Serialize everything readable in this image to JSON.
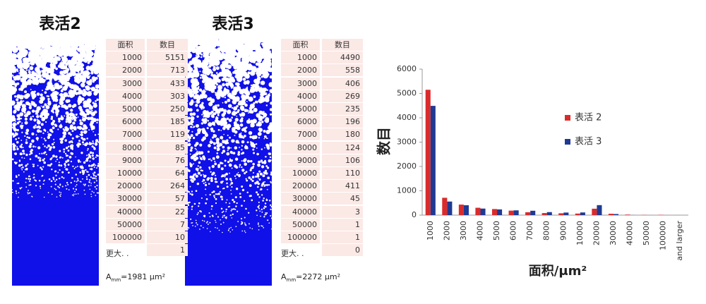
{
  "panels": [
    {
      "title": "表活2",
      "table": {
        "header": [
          "面积",
          "数目"
        ],
        "rows": [
          [
            "1000",
            "5151"
          ],
          [
            "2000",
            "713"
          ],
          [
            "3000",
            "433"
          ],
          [
            "4000",
            "303"
          ],
          [
            "5000",
            "250"
          ],
          [
            "6000",
            "185"
          ],
          [
            "7000",
            "119"
          ],
          [
            "8000",
            "85"
          ],
          [
            "9000",
            "76"
          ],
          [
            "10000",
            "64"
          ],
          [
            "20000",
            "264"
          ],
          [
            "30000",
            "57"
          ],
          [
            "40000",
            "22"
          ],
          [
            "50000",
            "7"
          ],
          [
            "100000",
            "10"
          ]
        ],
        "more_label": "更大. .",
        "more_value": "1"
      },
      "caption": {
        "symbol": "A",
        "subscript": "mm",
        "value": "=1981 μm²"
      }
    },
    {
      "title": "表活3",
      "table": {
        "header": [
          "面积",
          "数目"
        ],
        "rows": [
          [
            "1000",
            "4490"
          ],
          [
            "2000",
            "558"
          ],
          [
            "3000",
            "406"
          ],
          [
            "4000",
            "269"
          ],
          [
            "5000",
            "235"
          ],
          [
            "6000",
            "196"
          ],
          [
            "7000",
            "180"
          ],
          [
            "8000",
            "124"
          ],
          [
            "9000",
            "106"
          ],
          [
            "10000",
            "110"
          ],
          [
            "20000",
            "411"
          ],
          [
            "30000",
            "45"
          ],
          [
            "40000",
            "3"
          ],
          [
            "50000",
            "1"
          ],
          [
            "100000",
            "1"
          ]
        ],
        "more_label": "更大. .",
        "more_value": "0"
      },
      "caption": {
        "symbol": "A",
        "subscript": "mm",
        "value": "=2272 μm²"
      }
    }
  ],
  "chart_data": {
    "type": "bar",
    "xlabel": "面积/μm²",
    "ylabel": "数目",
    "categories": [
      "1000",
      "2000",
      "3000",
      "4000",
      "5000",
      "6000",
      "7000",
      "8000",
      "9000",
      "10000",
      "20000",
      "30000",
      "40000",
      "50000",
      "100000",
      "and larger"
    ],
    "series": [
      {
        "name": "表活 2",
        "color": "#d92b2b",
        "values": [
          5151,
          713,
          433,
          303,
          250,
          185,
          119,
          85,
          76,
          64,
          264,
          57,
          22,
          7,
          10,
          1
        ]
      },
      {
        "name": "表活 3",
        "color": "#1f3a93",
        "values": [
          4490,
          558,
          406,
          269,
          235,
          196,
          180,
          124,
          106,
          110,
          411,
          45,
          3,
          1,
          1,
          0
        ]
      }
    ],
    "ylim": [
      0,
      6000
    ],
    "yticks": [
      0,
      1000,
      2000,
      3000,
      4000,
      5000,
      6000
    ]
  }
}
